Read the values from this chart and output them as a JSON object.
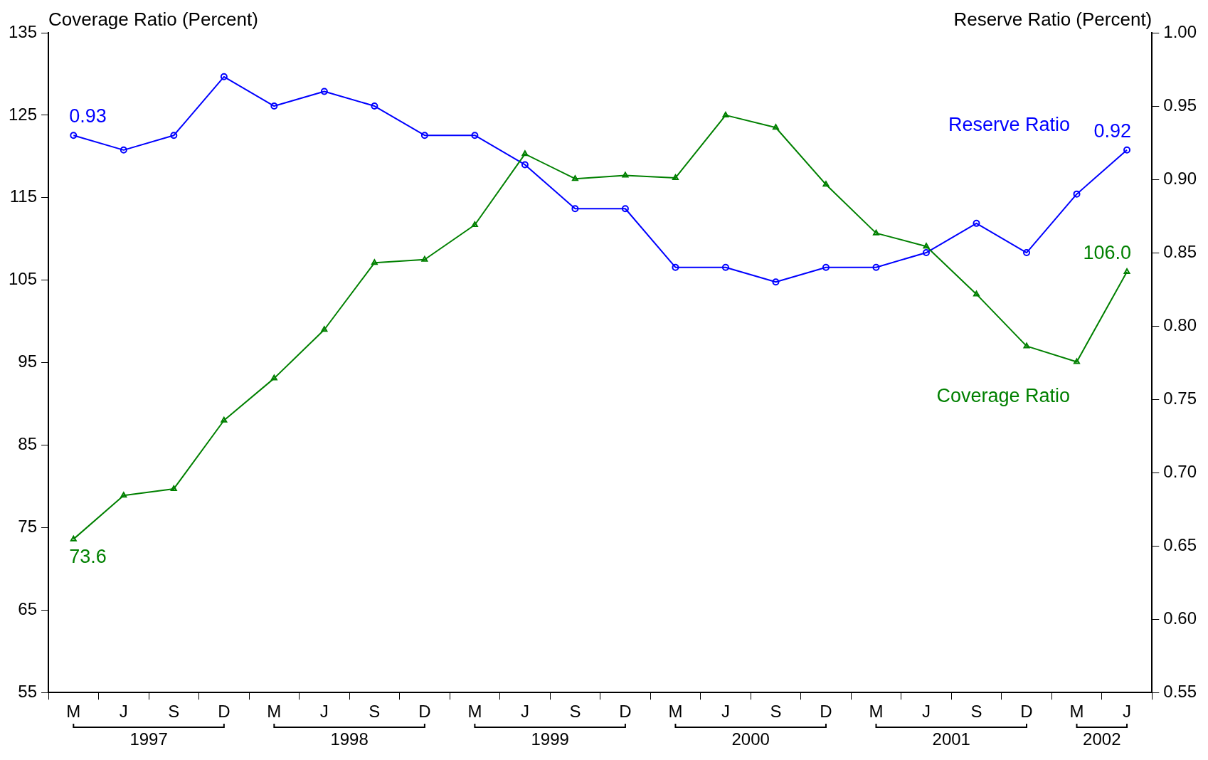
{
  "chart_data": {
    "type": "line",
    "ylabel": "Coverage Ratio (Percent)",
    "y2label": "Reserve Ratio (Percent)",
    "categories": [
      "M",
      "J",
      "S",
      "D",
      "M",
      "J",
      "S",
      "D",
      "M",
      "J",
      "S",
      "D",
      "M",
      "J",
      "S",
      "D",
      "M",
      "J",
      "S",
      "D",
      "M",
      "J"
    ],
    "series": [
      {
        "name": "Coverage Ratio",
        "color": "#008000",
        "marker": "triangle",
        "values": [
          73.6,
          78.9,
          79.7,
          88.0,
          93.1,
          99.0,
          107.1,
          107.5,
          111.7,
          120.3,
          117.3,
          117.7,
          117.4,
          125.0,
          123.5,
          116.6,
          110.7,
          109.1,
          103.3,
          97.0,
          95.1,
          106.0
        ],
        "value_labels": [
          "73.6",
          null,
          null,
          null,
          null,
          null,
          null,
          null,
          null,
          null,
          null,
          null,
          null,
          null,
          null,
          null,
          null,
          null,
          null,
          null,
          null,
          "106.0"
        ]
      },
      {
        "name": "Reserve Ratio",
        "color": "#0000ff",
        "marker": "circle",
        "axis": "y2",
        "values": [
          0.93,
          0.92,
          0.93,
          0.97,
          0.95,
          0.96,
          0.95,
          0.93,
          0.93,
          0.91,
          0.88,
          0.88,
          0.84,
          0.84,
          0.83,
          0.84,
          0.84,
          0.85,
          0.87,
          0.85,
          0.89,
          0.92
        ],
        "value_labels": [
          "0.93",
          null,
          null,
          null,
          null,
          null,
          null,
          null,
          null,
          null,
          null,
          null,
          null,
          null,
          null,
          null,
          null,
          null,
          null,
          null,
          null,
          "0.92"
        ]
      }
    ],
    "ylim": [
      55,
      135
    ],
    "yticks": [
      55,
      65,
      75,
      85,
      95,
      105,
      115,
      125,
      135
    ],
    "y2lim": [
      0.55,
      1.0
    ],
    "y2ticks": [
      {
        "value": 0.55,
        "label": "0.55"
      },
      {
        "value": 0.6,
        "label": "0.60"
      },
      {
        "value": 0.65,
        "label": "0.65"
      },
      {
        "value": 0.7,
        "label": "0.70"
      },
      {
        "value": 0.75,
        "label": "0.75"
      },
      {
        "value": 0.8,
        "label": "0.80"
      },
      {
        "value": 0.85,
        "label": "0.85"
      },
      {
        "value": 0.9,
        "label": "0.90"
      },
      {
        "value": 0.95,
        "label": "0.95"
      },
      {
        "value": 1.0,
        "label": "1.00"
      }
    ],
    "annotations": [
      "1997",
      "1998",
      "1999",
      "2000",
      "2001",
      "2002"
    ],
    "grid": false,
    "legend": false,
    "line_style": "solid"
  }
}
